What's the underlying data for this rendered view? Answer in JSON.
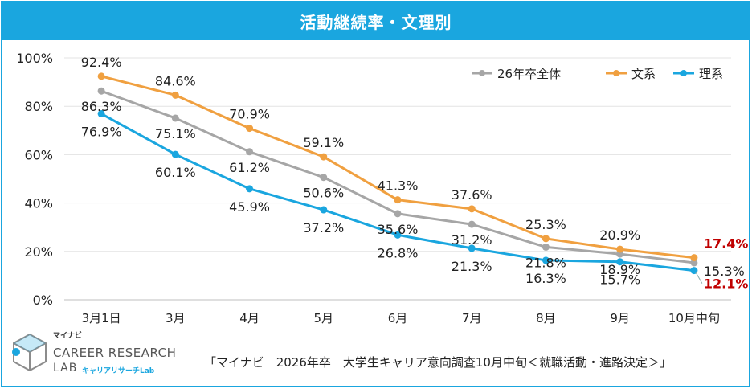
{
  "title": "活動継続率・文理別",
  "source": "「マイナビ　2026年卒　大学生キャリア意向調査10月中旬＜就職活動・進路決定＞」",
  "logo": {
    "small": "マイナビ",
    "main": "CAREER RESEARCH",
    "lab": "LAB",
    "sub": "キャリアリサーチLab"
  },
  "colors": {
    "accent": "#1aa6df",
    "total": "#a6a6a6",
    "bunkei": "#f0a040",
    "rikei": "#1aa6df",
    "highlight": "#c00000"
  },
  "chart_data": {
    "type": "line",
    "categories": [
      "3月1日",
      "3月",
      "4月",
      "5月",
      "6月",
      "7月",
      "8月",
      "9月",
      "10月中旬"
    ],
    "ylim": [
      0,
      100
    ],
    "yticks": [
      "0%",
      "20%",
      "40%",
      "60%",
      "80%",
      "100%"
    ],
    "series": [
      {
        "name": "26年卒全体",
        "color": "#a6a6a6",
        "values": [
          86.3,
          75.1,
          61.2,
          50.6,
          35.6,
          31.2,
          21.8,
          18.9,
          15.3
        ],
        "labels": [
          "86.3%",
          "75.1%",
          "61.2%",
          "50.6%",
          "35.6%",
          "31.2%",
          "21.8%",
          "18.9%",
          "15.3%"
        ]
      },
      {
        "name": "文系",
        "color": "#f0a040",
        "values": [
          92.4,
          84.6,
          70.9,
          59.1,
          41.3,
          37.6,
          25.3,
          20.9,
          17.4
        ],
        "labels": [
          "92.4%",
          "84.6%",
          "70.9%",
          "59.1%",
          "41.3%",
          "37.6%",
          "25.3%",
          "20.9%",
          "17.4%"
        ]
      },
      {
        "name": "理系",
        "color": "#1aa6df",
        "values": [
          76.9,
          60.1,
          45.9,
          37.2,
          26.8,
          21.3,
          16.3,
          15.7,
          12.1
        ],
        "labels": [
          "76.9%",
          "60.1%",
          "45.9%",
          "37.2%",
          "26.8%",
          "21.3%",
          "16.3%",
          "15.7%",
          "12.1%"
        ]
      }
    ],
    "legend": "top-right",
    "grid": true
  }
}
